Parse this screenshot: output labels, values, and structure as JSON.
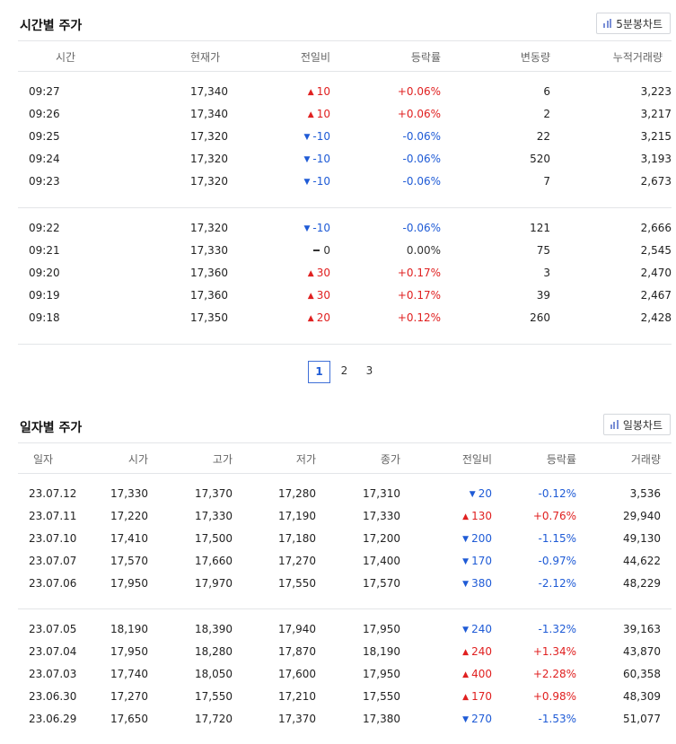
{
  "intraday": {
    "title": "시간별 주가",
    "chart_button": "5분봉차트",
    "headers": [
      "시간",
      "현재가",
      "전일비",
      "등락률",
      "변동량",
      "누적거래량"
    ],
    "groups": [
      [
        {
          "time": "09:27",
          "price": "17,340",
          "dir": "up",
          "change": "10",
          "rate": "+0.06%",
          "vol": "6",
          "cum": "3,223"
        },
        {
          "time": "09:26",
          "price": "17,340",
          "dir": "up",
          "change": "10",
          "rate": "+0.06%",
          "vol": "2",
          "cum": "3,217"
        },
        {
          "time": "09:25",
          "price": "17,320",
          "dir": "down",
          "change": "-10",
          "rate": "-0.06%",
          "vol": "22",
          "cum": "3,215"
        },
        {
          "time": "09:24",
          "price": "17,320",
          "dir": "down",
          "change": "-10",
          "rate": "-0.06%",
          "vol": "520",
          "cum": "3,193"
        },
        {
          "time": "09:23",
          "price": "17,320",
          "dir": "down",
          "change": "-10",
          "rate": "-0.06%",
          "vol": "7",
          "cum": "2,673"
        }
      ],
      [
        {
          "time": "09:22",
          "price": "17,320",
          "dir": "down",
          "change": "-10",
          "rate": "-0.06%",
          "vol": "121",
          "cum": "2,666"
        },
        {
          "time": "09:21",
          "price": "17,330",
          "dir": "flat",
          "change": "0",
          "rate": "0.00%",
          "vol": "75",
          "cum": "2,545"
        },
        {
          "time": "09:20",
          "price": "17,360",
          "dir": "up",
          "change": "30",
          "rate": "+0.17%",
          "vol": "3",
          "cum": "2,470"
        },
        {
          "time": "09:19",
          "price": "17,360",
          "dir": "up",
          "change": "30",
          "rate": "+0.17%",
          "vol": "39",
          "cum": "2,467"
        },
        {
          "time": "09:18",
          "price": "17,350",
          "dir": "up",
          "change": "20",
          "rate": "+0.12%",
          "vol": "260",
          "cum": "2,428"
        }
      ]
    ],
    "pages": [
      "1",
      "2",
      "3"
    ],
    "active_page": "1"
  },
  "daily": {
    "title": "일자별 주가",
    "chart_button": "일봉차트",
    "headers": [
      "일자",
      "시가",
      "고가",
      "저가",
      "종가",
      "전일비",
      "등락률",
      "거래량"
    ],
    "groups": [
      [
        {
          "date": "23.07.12",
          "open": "17,330",
          "high": "17,370",
          "low": "17,280",
          "close": "17,310",
          "dir": "down",
          "change": "20",
          "rate": "-0.12%",
          "vol": "3,536"
        },
        {
          "date": "23.07.11",
          "open": "17,220",
          "high": "17,330",
          "low": "17,190",
          "close": "17,330",
          "dir": "up",
          "change": "130",
          "rate": "+0.76%",
          "vol": "29,940"
        },
        {
          "date": "23.07.10",
          "open": "17,410",
          "high": "17,500",
          "low": "17,180",
          "close": "17,200",
          "dir": "down",
          "change": "200",
          "rate": "-1.15%",
          "vol": "49,130"
        },
        {
          "date": "23.07.07",
          "open": "17,570",
          "high": "17,660",
          "low": "17,270",
          "close": "17,400",
          "dir": "down",
          "change": "170",
          "rate": "-0.97%",
          "vol": "44,622"
        },
        {
          "date": "23.07.06",
          "open": "17,950",
          "high": "17,970",
          "low": "17,550",
          "close": "17,570",
          "dir": "down",
          "change": "380",
          "rate": "-2.12%",
          "vol": "48,229"
        }
      ],
      [
        {
          "date": "23.07.05",
          "open": "18,190",
          "high": "18,390",
          "low": "17,940",
          "close": "17,950",
          "dir": "down",
          "change": "240",
          "rate": "-1.32%",
          "vol": "39,163"
        },
        {
          "date": "23.07.04",
          "open": "17,950",
          "high": "18,280",
          "low": "17,870",
          "close": "18,190",
          "dir": "up",
          "change": "240",
          "rate": "+1.34%",
          "vol": "43,870"
        },
        {
          "date": "23.07.03",
          "open": "17,740",
          "high": "18,050",
          "low": "17,600",
          "close": "17,950",
          "dir": "up",
          "change": "400",
          "rate": "+2.28%",
          "vol": "60,358"
        },
        {
          "date": "23.06.30",
          "open": "17,270",
          "high": "17,550",
          "low": "17,210",
          "close": "17,550",
          "dir": "up",
          "change": "170",
          "rate": "+0.98%",
          "vol": "48,309"
        },
        {
          "date": "23.06.29",
          "open": "17,650",
          "high": "17,720",
          "low": "17,370",
          "close": "17,380",
          "dir": "down",
          "change": "270",
          "rate": "-1.53%",
          "vol": "51,077"
        }
      ]
    ]
  },
  "colors": {
    "up": "#e02020",
    "down": "#1f5bd6",
    "accent": "#3f6fd8"
  }
}
